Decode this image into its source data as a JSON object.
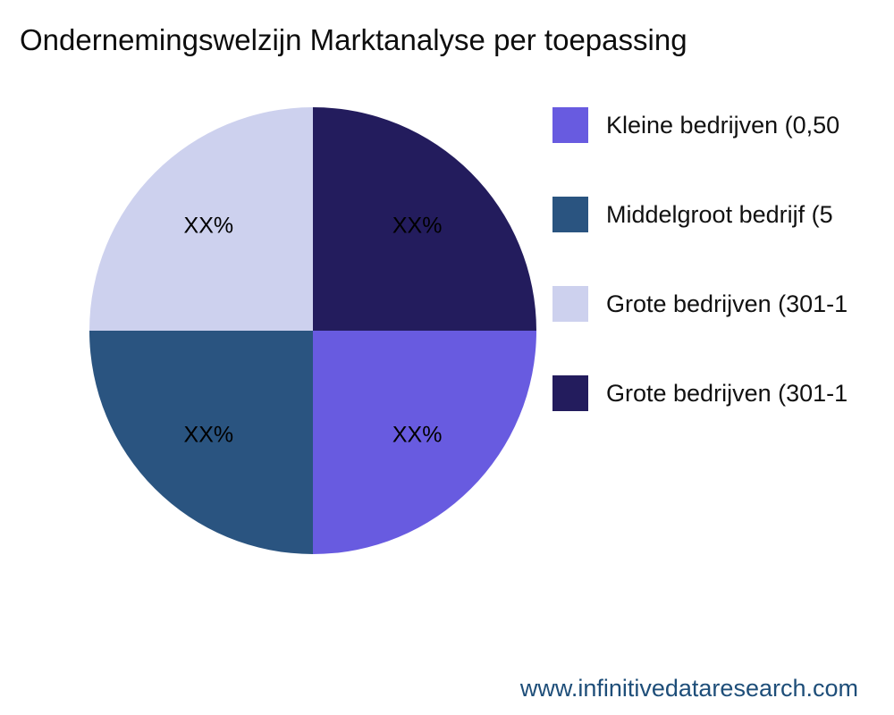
{
  "title": "Ondernemingswelzijn Marktanalyse per toepassing",
  "footer": {
    "url_text": "www.infinitivedataresearch.com"
  },
  "chart_data": {
    "type": "pie",
    "title": "Ondernemingswelzijn Marktanalyse per toepassing",
    "labels": [
      "Kleine bedrijven (0,50",
      "Middelgroot bedrijf (5",
      "Grote bedrijven (301-1",
      "Grote bedrijven (301-1"
    ],
    "values": [
      25,
      25,
      25,
      25
    ],
    "value_labels": [
      "XX%",
      "XX%",
      "XX%",
      "XX%"
    ],
    "colors": [
      "#685BE0",
      "#2A5480",
      "#CDD1EE",
      "#231C5D"
    ],
    "start_angle_deg": 0,
    "direction": "clockwise",
    "legend_position": "right",
    "grid": false
  }
}
